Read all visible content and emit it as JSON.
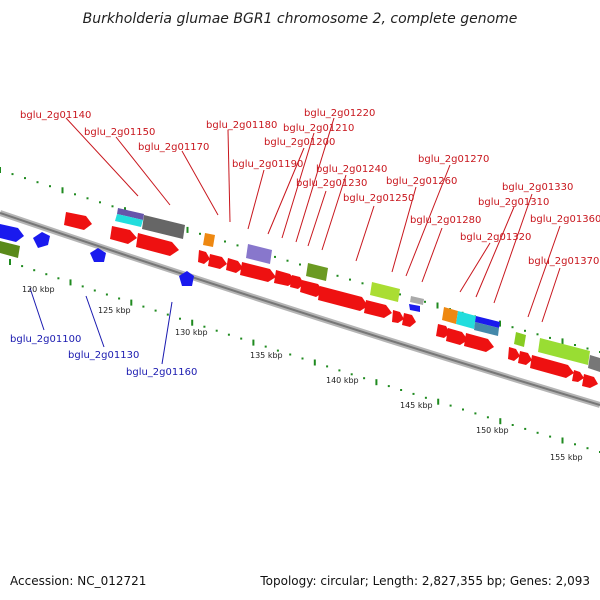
{
  "title": "Burkholderia glumae BGR1 chromosome 2, complete genome",
  "footer": {
    "accession": "Accession: NC_012721",
    "summary": "Topology: circular; Length: 2,827,355 bp; Genes: 2,093"
  },
  "colors": {
    "forward_gene": "#ee1111",
    "reverse_gene": "#1a1aee",
    "label_forward": "#c8161d",
    "label_reverse": "#1a1ab0",
    "backbone": "#888888",
    "scale_tick": "#1f8a1f"
  },
  "scale_labels": [
    "120 kbp",
    "125 kbp",
    "130 kbp",
    "135 kbp",
    "140 kbp",
    "145 kbp",
    "150 kbp",
    "155 kbp"
  ],
  "forward_labels": [
    "bglu_2g01140",
    "bglu_2g01150",
    "bglu_2g01170",
    "bglu_2g01180",
    "bglu_2g01190",
    "bglu_2g01200",
    "bglu_2g01210",
    "bglu_2g01220",
    "bglu_2g01230",
    "bglu_2g01240",
    "bglu_2g01250",
    "bglu_2g01260",
    "bglu_2g01270",
    "bglu_2g01280",
    "bglu_2g01310",
    "bglu_2g01320",
    "bglu_2g01330",
    "bglu_2g01360",
    "bglu_2g01370"
  ],
  "reverse_labels": [
    "bglu_2g01100",
    "bglu_2g01130",
    "bglu_2g01160"
  ]
}
